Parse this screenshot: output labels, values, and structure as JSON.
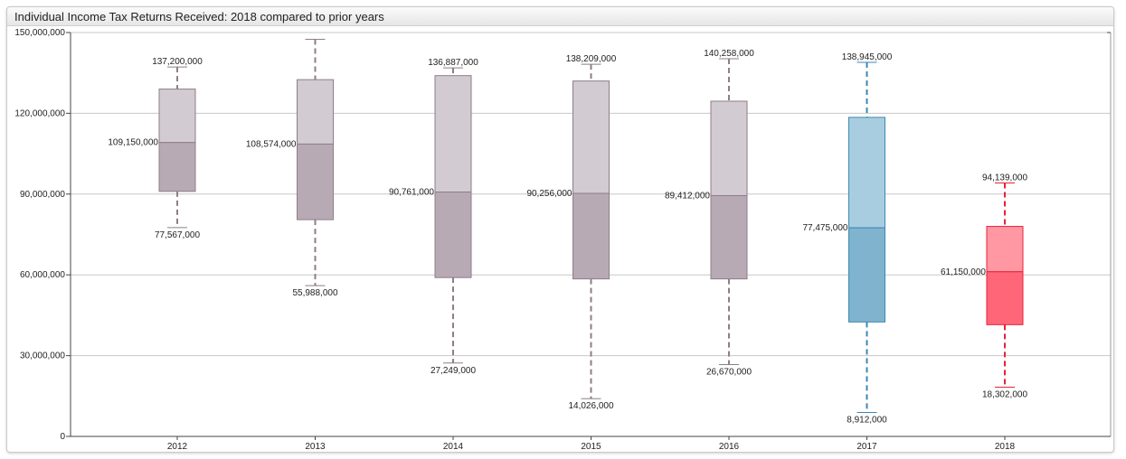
{
  "window": {
    "title": "Individual Income Tax Returns Received: 2018 compared to prior years"
  },
  "colors": {
    "default_box_q1": "#b8aab4",
    "default_box_q3": "#d2cbd1",
    "default_whisker": "#8e7d89",
    "highlight_2017_q1": "#7fb3ce",
    "highlight_2017_q3": "#a9cde0",
    "highlight_2017_whisker": "#3e88b0",
    "highlight_2018_q1": "#ff6778",
    "highlight_2018_q3": "#ff98a3",
    "highlight_2018_whisker": "#e8213a",
    "grid": "#c8c8c8",
    "axis": "#444444"
  },
  "chart_data": {
    "type": "box",
    "title": "Individual Income Tax Returns Received: 2018 compared to prior years",
    "xlabel": "",
    "ylabel": "",
    "ylim": [
      0,
      150000000
    ],
    "yticks": [
      0,
      30000000,
      60000000,
      90000000,
      120000000,
      150000000
    ],
    "ytick_labels": [
      "0",
      "30,000,000",
      "60,000,000",
      "90,000,000",
      "120,000,000",
      "150,000,000"
    ],
    "grid": true,
    "categories": [
      "2012",
      "2013",
      "2014",
      "2015",
      "2016",
      "2017",
      "2018"
    ],
    "boxes": [
      {
        "category": "2012",
        "min": 77567000,
        "q1": 91000000,
        "median": 109150000,
        "q3": 129000000,
        "max": 137200000,
        "min_label": "77,567,000",
        "median_label": "109,150,000",
        "max_label": "137,200,000",
        "style": "default"
      },
      {
        "category": "2013",
        "min": 55988000,
        "q1": 80500000,
        "median": 108574000,
        "q3": 132500000,
        "max": 147500000,
        "min_label": "55,988,000",
        "median_label": "108,574,000",
        "max_label": "",
        "style": "default"
      },
      {
        "category": "2014",
        "min": 27249000,
        "q1": 59000000,
        "median": 90761000,
        "q3": 134000000,
        "max": 136887000,
        "min_label": "27,249,000",
        "median_label": "90,761,000",
        "max_label": "136,887,000",
        "style": "default"
      },
      {
        "category": "2015",
        "min": 14026000,
        "q1": 58500000,
        "median": 90256000,
        "q3": 132000000,
        "max": 138209000,
        "min_label": "14,026,000",
        "median_label": "90,256,000",
        "max_label": "138,209,000",
        "style": "default"
      },
      {
        "category": "2016",
        "min": 26670000,
        "q1": 58500000,
        "median": 89412000,
        "q3": 124500000,
        "max": 140258000,
        "min_label": "26,670,000",
        "median_label": "89,412,000",
        "max_label": "140,258,000",
        "style": "default"
      },
      {
        "category": "2017",
        "min": 8912000,
        "q1": 42500000,
        "median": 77475000,
        "q3": 118500000,
        "max": 138945000,
        "min_label": "8,912,000",
        "median_label": "77,475,000",
        "max_label": "138,945,000",
        "style": "highlight_2017"
      },
      {
        "category": "2018",
        "min": 18302000,
        "q1": 41500000,
        "median": 61150000,
        "q3": 78000000,
        "max": 94139000,
        "min_label": "18,302,000",
        "median_label": "61,150,000",
        "max_label": "94,139,000",
        "style": "highlight_2018"
      }
    ]
  }
}
